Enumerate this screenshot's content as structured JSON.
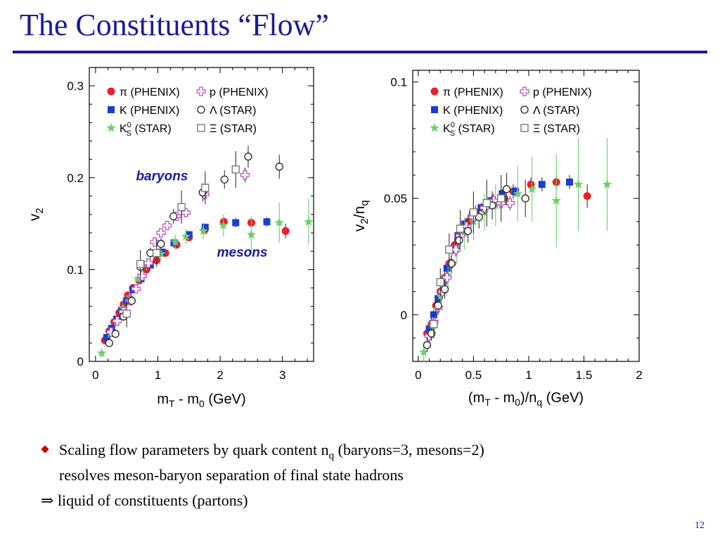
{
  "slide": {
    "title": "The Constituents “Flow”",
    "bullet_1_main": "Scaling flow parameters by quark content n",
    "bullet_1_sub": "q",
    "bullet_1_tail": " (baryons=3, mesons=2)",
    "bullet_1_line2": "resolves meson-baryon separation of final state hadrons",
    "bullet_2_arrow": "⇒",
    "bullet_2_text": " liquid of constituents (partons)",
    "page_number": "12"
  },
  "legend": {
    "entries": [
      {
        "key": "pi",
        "label": "π (PHENIX)",
        "marker": "filled-circle",
        "color": "#e8202a"
      },
      {
        "key": "p",
        "label": "p (PHENIX)",
        "marker": "open-cross",
        "color": "#c050c8"
      },
      {
        "key": "K",
        "label": "K (PHENIX)",
        "marker": "filled-square",
        "color": "#1a3ecf"
      },
      {
        "key": "Lambda",
        "label": "Λ (STAR)",
        "marker": "open-circle",
        "color": "#222222"
      },
      {
        "key": "K0S",
        "label": "(STAR)",
        "label_base": "K",
        "label_sup": "0",
        "label_sub": "S",
        "marker": "filled-star",
        "color": "#6ccf6c"
      },
      {
        "key": "Xi",
        "label": "Ξ (STAR)",
        "marker": "open-square",
        "color": "#707070"
      }
    ]
  },
  "chart_data": [
    {
      "type": "scatter",
      "xlabel": "m_T - m_0 (GeV)",
      "ylabel": "v_2",
      "xlim": [
        -0.1,
        3.5
      ],
      "ylim": [
        0,
        0.32
      ],
      "xticks": [
        "0",
        "1",
        "2",
        "3"
      ],
      "xtick_values": [
        0,
        1,
        2,
        3
      ],
      "yticks": [
        "0",
        "0.1",
        "0.2",
        "0.3"
      ],
      "ytick_values": [
        0,
        0.1,
        0.2,
        0.3
      ],
      "annotations": [
        {
          "text": "baryons",
          "x": 0.65,
          "y": 0.197,
          "color": "#1a1a9c"
        },
        {
          "text": "mesons",
          "x": 1.95,
          "y": 0.114,
          "color": "#1a1a9c"
        }
      ],
      "series": [
        {
          "key": "pi",
          "x": [
            0.15,
            0.22,
            0.3,
            0.38,
            0.45,
            0.52,
            0.6,
            0.7,
            0.82,
            0.98,
            1.12,
            1.3,
            1.5,
            1.75,
            2.06,
            2.5,
            3.05
          ],
          "y": [
            0.023,
            0.033,
            0.043,
            0.053,
            0.062,
            0.072,
            0.08,
            0.088,
            0.1,
            0.11,
            0.118,
            0.127,
            0.135,
            0.143,
            0.152,
            0.151,
            0.142
          ],
          "err": [
            0.004,
            0.004,
            0.004,
            0.004,
            0.004,
            0.004,
            0.004,
            0.004,
            0.004,
            0.004,
            0.004,
            0.004,
            0.004,
            0.004,
            0.004,
            0.004,
            0.008
          ]
        },
        {
          "key": "K",
          "x": [
            0.18,
            0.26,
            0.34,
            0.42,
            0.5,
            0.6,
            0.73,
            0.88,
            1.06,
            1.26,
            1.5,
            1.76,
            2.25,
            2.75
          ],
          "y": [
            0.026,
            0.036,
            0.046,
            0.056,
            0.066,
            0.078,
            0.09,
            0.105,
            0.119,
            0.129,
            0.138,
            0.146,
            0.151,
            0.152
          ],
          "err": [
            0.003,
            0.003,
            0.003,
            0.003,
            0.003,
            0.003,
            0.003,
            0.003,
            0.003,
            0.003,
            0.003,
            0.003,
            0.005,
            0.005
          ]
        },
        {
          "key": "K0S",
          "x": [
            0.1,
            0.24,
            0.34,
            0.44,
            0.55,
            0.68,
            0.82,
            1.05,
            1.28,
            1.45,
            1.73,
            2.05,
            2.5,
            2.95,
            3.42
          ],
          "y": [
            0.009,
            0.03,
            0.043,
            0.058,
            0.07,
            0.09,
            0.106,
            0.117,
            0.13,
            0.136,
            0.142,
            0.148,
            0.138,
            0.151,
            0.152
          ],
          "err": [
            0.005,
            0.005,
            0.006,
            0.006,
            0.006,
            0.007,
            0.007,
            0.007,
            0.008,
            0.008,
            0.009,
            0.012,
            0.02,
            0.022,
            0.025
          ]
        },
        {
          "key": "p",
          "x": [
            0.25,
            0.35,
            0.45,
            0.55,
            0.65,
            0.75,
            0.85,
            0.95,
            1.05,
            1.15,
            1.3,
            1.45,
            1.75,
            2.4
          ],
          "y": [
            0.032,
            0.044,
            0.054,
            0.066,
            0.079,
            0.093,
            0.107,
            0.13,
            0.14,
            0.148,
            0.158,
            0.162,
            0.182,
            0.203
          ],
          "err": [
            0.004,
            0.004,
            0.004,
            0.004,
            0.004,
            0.004,
            0.004,
            0.005,
            0.005,
            0.005,
            0.005,
            0.005,
            0.006,
            0.008
          ]
        },
        {
          "key": "Lambda",
          "x": [
            0.22,
            0.32,
            0.45,
            0.58,
            0.72,
            0.88,
            1.05,
            1.25,
            1.72,
            2.07,
            2.45,
            2.95
          ],
          "y": [
            0.02,
            0.03,
            0.049,
            0.066,
            0.103,
            0.118,
            0.128,
            0.158,
            0.184,
            0.198,
            0.223,
            0.212
          ],
          "err": [
            0.004,
            0.004,
            0.005,
            0.005,
            0.006,
            0.006,
            0.006,
            0.008,
            0.01,
            0.01,
            0.012,
            0.013
          ]
        },
        {
          "key": "Xi",
          "x": [
            0.5,
            0.72,
            0.98,
            1.38,
            1.76,
            2.25
          ],
          "y": [
            0.052,
            0.106,
            0.118,
            0.168,
            0.189,
            0.209
          ],
          "err": [
            0.015,
            0.015,
            0.015,
            0.018,
            0.018,
            0.02
          ]
        }
      ]
    },
    {
      "type": "scatter",
      "xlabel": "(m_T - m_0)/n_q (GeV)",
      "ylabel": "v_2/n_q",
      "xlim": [
        -0.05,
        2.0
      ],
      "ylim": [
        -0.02,
        0.105
      ],
      "xticks": [
        "0",
        "0.5",
        "1",
        "1.5",
        "2"
      ],
      "xtick_values": [
        0,
        0.5,
        1,
        1.5,
        2
      ],
      "yticks": [
        "0",
        "0.05",
        "0.1"
      ],
      "ytick_values": [
        0,
        0.05,
        0.1
      ],
      "series": [
        {
          "key": "pi",
          "x": [
            0.08,
            0.12,
            0.16,
            0.2,
            0.24,
            0.28,
            0.33,
            0.38,
            0.45,
            0.52,
            0.6,
            0.7,
            0.78,
            0.86,
            1.02,
            1.25,
            1.53
          ],
          "y": [
            -0.008,
            -0.004,
            0.004,
            0.01,
            0.016,
            0.022,
            0.03,
            0.036,
            0.04,
            0.044,
            0.046,
            0.048,
            0.05,
            0.053,
            0.056,
            0.057,
            0.051
          ],
          "err": [
            0.003,
            0.003,
            0.003,
            0.003,
            0.003,
            0.003,
            0.003,
            0.003,
            0.003,
            0.003,
            0.003,
            0.003,
            0.003,
            0.003,
            0.003,
            0.003,
            0.005
          ]
        },
        {
          "key": "K",
          "x": [
            0.1,
            0.14,
            0.18,
            0.22,
            0.26,
            0.31,
            0.36,
            0.42,
            0.49,
            0.57,
            0.66,
            0.76,
            0.88,
            1.12,
            1.37
          ],
          "y": [
            -0.006,
            0.0,
            0.007,
            0.014,
            0.02,
            0.028,
            0.034,
            0.039,
            0.043,
            0.046,
            0.049,
            0.052,
            0.053,
            0.056,
            0.057
          ],
          "err": [
            0.002,
            0.002,
            0.002,
            0.002,
            0.002,
            0.002,
            0.002,
            0.002,
            0.002,
            0.002,
            0.002,
            0.002,
            0.002,
            0.003,
            0.003
          ]
        },
        {
          "key": "K0S",
          "x": [
            0.05,
            0.13,
            0.2,
            0.27,
            0.35,
            0.42,
            0.5,
            0.6,
            0.7,
            0.9,
            1.03,
            1.25,
            1.45,
            1.71
          ],
          "y": [
            -0.016,
            -0.005,
            0.008,
            0.017,
            0.028,
            0.035,
            0.04,
            0.044,
            0.047,
            0.052,
            0.054,
            0.049,
            0.056,
            0.056
          ],
          "err": [
            0.004,
            0.004,
            0.005,
            0.006,
            0.006,
            0.007,
            0.008,
            0.008,
            0.009,
            0.012,
            0.014,
            0.02,
            0.02,
            0.02
          ]
        },
        {
          "key": "p",
          "x": [
            0.1,
            0.14,
            0.18,
            0.22,
            0.26,
            0.3,
            0.34,
            0.38,
            0.44,
            0.5,
            0.6,
            0.68,
            0.75,
            0.83
          ],
          "y": [
            -0.009,
            -0.003,
            0.003,
            0.01,
            0.016,
            0.022,
            0.028,
            0.034,
            0.038,
            0.042,
            0.046,
            0.049,
            0.048,
            0.048
          ],
          "err": [
            0.003,
            0.003,
            0.003,
            0.003,
            0.003,
            0.003,
            0.003,
            0.003,
            0.003,
            0.003,
            0.003,
            0.003,
            0.003,
            0.003
          ]
        },
        {
          "key": "Lambda",
          "x": [
            0.08,
            0.12,
            0.18,
            0.24,
            0.3,
            0.37,
            0.45,
            0.55,
            0.67,
            0.8,
            0.97
          ],
          "y": [
            -0.013,
            -0.008,
            0.004,
            0.011,
            0.022,
            0.032,
            0.036,
            0.042,
            0.047,
            0.054,
            0.05
          ],
          "err": [
            0.003,
            0.003,
            0.003,
            0.004,
            0.004,
            0.004,
            0.005,
            0.005,
            0.006,
            0.007,
            0.008
          ]
        },
        {
          "key": "Xi",
          "x": [
            0.14,
            0.2,
            0.28,
            0.38,
            0.5,
            0.62,
            0.75
          ],
          "y": [
            -0.004,
            0.014,
            0.028,
            0.037,
            0.044,
            0.048,
            0.05
          ],
          "err": [
            0.006,
            0.006,
            0.007,
            0.008,
            0.009,
            0.01,
            0.01
          ]
        }
      ]
    }
  ]
}
